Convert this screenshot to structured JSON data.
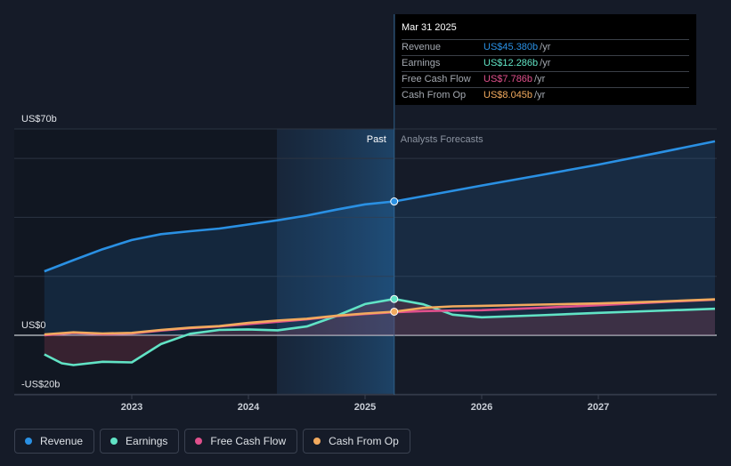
{
  "tooltip": {
    "date": "Mar 31 2025",
    "rows": [
      {
        "label": "Revenue",
        "value": "US$45.380b",
        "unit": "/yr",
        "color": "#2a90e3"
      },
      {
        "label": "Earnings",
        "value": "US$12.286b",
        "unit": "/yr",
        "color": "#61e3c5"
      },
      {
        "label": "Free Cash Flow",
        "value": "US$7.786b",
        "unit": "/yr",
        "color": "#e0508c"
      },
      {
        "label": "Cash From Op",
        "value": "US$8.045b",
        "unit": "/yr",
        "color": "#f2aa5e"
      }
    ]
  },
  "legend": [
    {
      "label": "Revenue",
      "color": "#2a90e3"
    },
    {
      "label": "Earnings",
      "color": "#61e3c5"
    },
    {
      "label": "Free Cash Flow",
      "color": "#e0508c"
    },
    {
      "label": "Cash From Op",
      "color": "#f2aa5e"
    }
  ],
  "chart_data": {
    "type": "line",
    "y_labels": [
      "US$70b",
      "US$0",
      "-US$20b"
    ],
    "ylim": [
      -20,
      70
    ],
    "x_ticks": [
      "2023",
      "2024",
      "2025",
      "2026",
      "2027"
    ],
    "past_label": "Past",
    "forecast_label": "Analysts Forecasts",
    "highlight_date": 2025.25,
    "series": [
      {
        "name": "Revenue",
        "color": "#2a90e3",
        "x": [
          2022.25,
          2022.5,
          2022.75,
          2023.0,
          2023.25,
          2023.5,
          2023.75,
          2024.0,
          2024.25,
          2024.5,
          2024.75,
          2025.0,
          2025.25,
          2025.5,
          2025.75,
          2026.0,
          2026.5,
          2027.0,
          2027.5,
          2027.75,
          2028.0
        ],
        "values": [
          21.7,
          25.5,
          29.2,
          32.3,
          34.3,
          35.3,
          36.2,
          37.6,
          39.0,
          40.6,
          42.6,
          44.4,
          45.4,
          47.2,
          49.0,
          50.8,
          54.3,
          57.9,
          61.8,
          63.8,
          65.8
        ]
      },
      {
        "name": "Earnings",
        "color": "#61e3c5",
        "x": [
          2022.25,
          2022.4,
          2022.5,
          2022.75,
          2023.0,
          2023.25,
          2023.5,
          2023.75,
          2024.0,
          2024.25,
          2024.5,
          2024.75,
          2025.0,
          2025.25,
          2025.5,
          2025.75,
          2026.0,
          2026.5,
          2027.0,
          2027.5,
          2028.0
        ],
        "values": [
          -6.5,
          -9.5,
          -10.1,
          -9.0,
          -9.2,
          -3.0,
          0.5,
          1.8,
          2.0,
          1.7,
          3.0,
          6.5,
          10.6,
          12.3,
          10.5,
          7.0,
          6.1,
          6.8,
          7.6,
          8.3,
          9.0
        ]
      },
      {
        "name": "Free Cash Flow",
        "color": "#e0508c",
        "x": [
          2022.25,
          2022.5,
          2022.75,
          2023.0,
          2023.25,
          2023.5,
          2023.75,
          2024.0,
          2024.25,
          2024.5,
          2024.75,
          2025.0,
          2025.25,
          2025.5,
          2025.75,
          2026.0,
          2026.5,
          2027.0,
          2027.5,
          2028.0
        ],
        "values": [
          0.0,
          0.8,
          0.4,
          0.6,
          1.6,
          2.4,
          3.0,
          3.8,
          4.6,
          5.4,
          6.5,
          7.2,
          7.8,
          8.2,
          8.4,
          8.5,
          9.3,
          10.2,
          11.2,
          12.1
        ]
      },
      {
        "name": "Cash From Op",
        "color": "#f2aa5e",
        "x": [
          2022.25,
          2022.5,
          2022.75,
          2023.0,
          2023.25,
          2023.5,
          2023.75,
          2024.0,
          2024.25,
          2024.5,
          2024.75,
          2025.0,
          2025.25,
          2025.5,
          2025.75,
          2026.0,
          2026.5,
          2027.0,
          2027.5,
          2028.0
        ],
        "values": [
          0.3,
          1.0,
          0.6,
          0.8,
          1.8,
          2.6,
          3.1,
          4.2,
          5.0,
          5.6,
          6.6,
          7.4,
          8.0,
          9.3,
          9.8,
          10.0,
          10.4,
          10.8,
          11.4,
          12.2
        ]
      }
    ]
  }
}
